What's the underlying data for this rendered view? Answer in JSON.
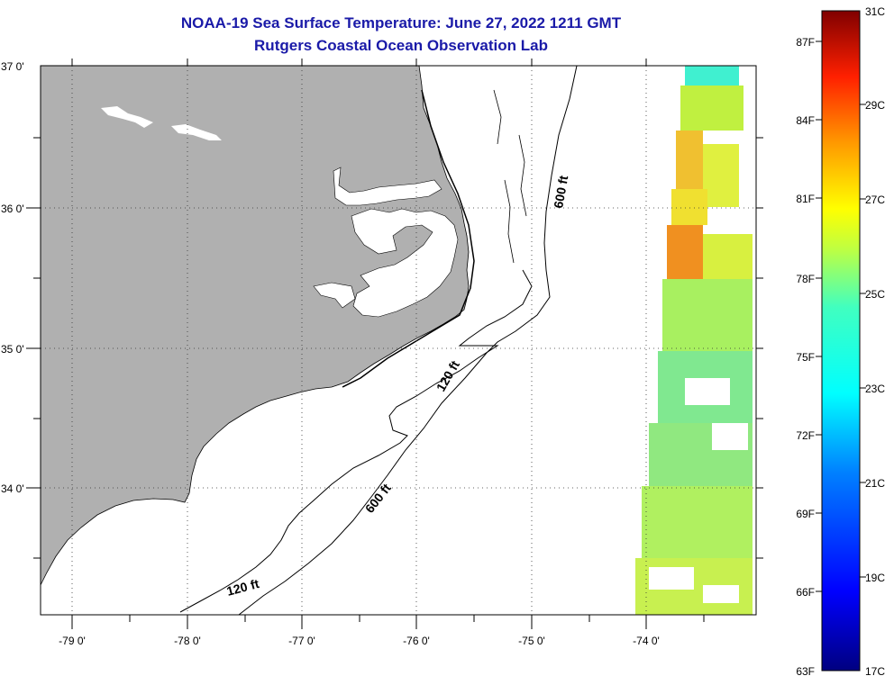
{
  "title": {
    "line1": "NOAA-19 Sea Surface Temperature:  June 27, 2022 1211 GMT",
    "line2": "Rutgers Coastal Ocean Observation Lab"
  },
  "map": {
    "lat_labels": [
      "37 0'",
      "36 0'",
      "35 0'",
      "34 0'"
    ],
    "lon_labels": [
      "-79 0'",
      "-78 0'",
      "-77 0'",
      "-76 0'",
      "-75 0'",
      "-74 0'"
    ],
    "land_color": "#b0b0b0",
    "contour_labels": [
      "600 ft",
      "120 ft",
      "600 ft",
      "120 ft"
    ]
  },
  "colorbar": {
    "fahrenheit_labels": [
      "87F",
      "84F",
      "81F",
      "78F",
      "75F",
      "72F",
      "69F",
      "66F",
      "63F"
    ],
    "celsius_labels": [
      "31C",
      "29C",
      "27C",
      "25C",
      "23C",
      "21C",
      "19C",
      "17C"
    ]
  }
}
